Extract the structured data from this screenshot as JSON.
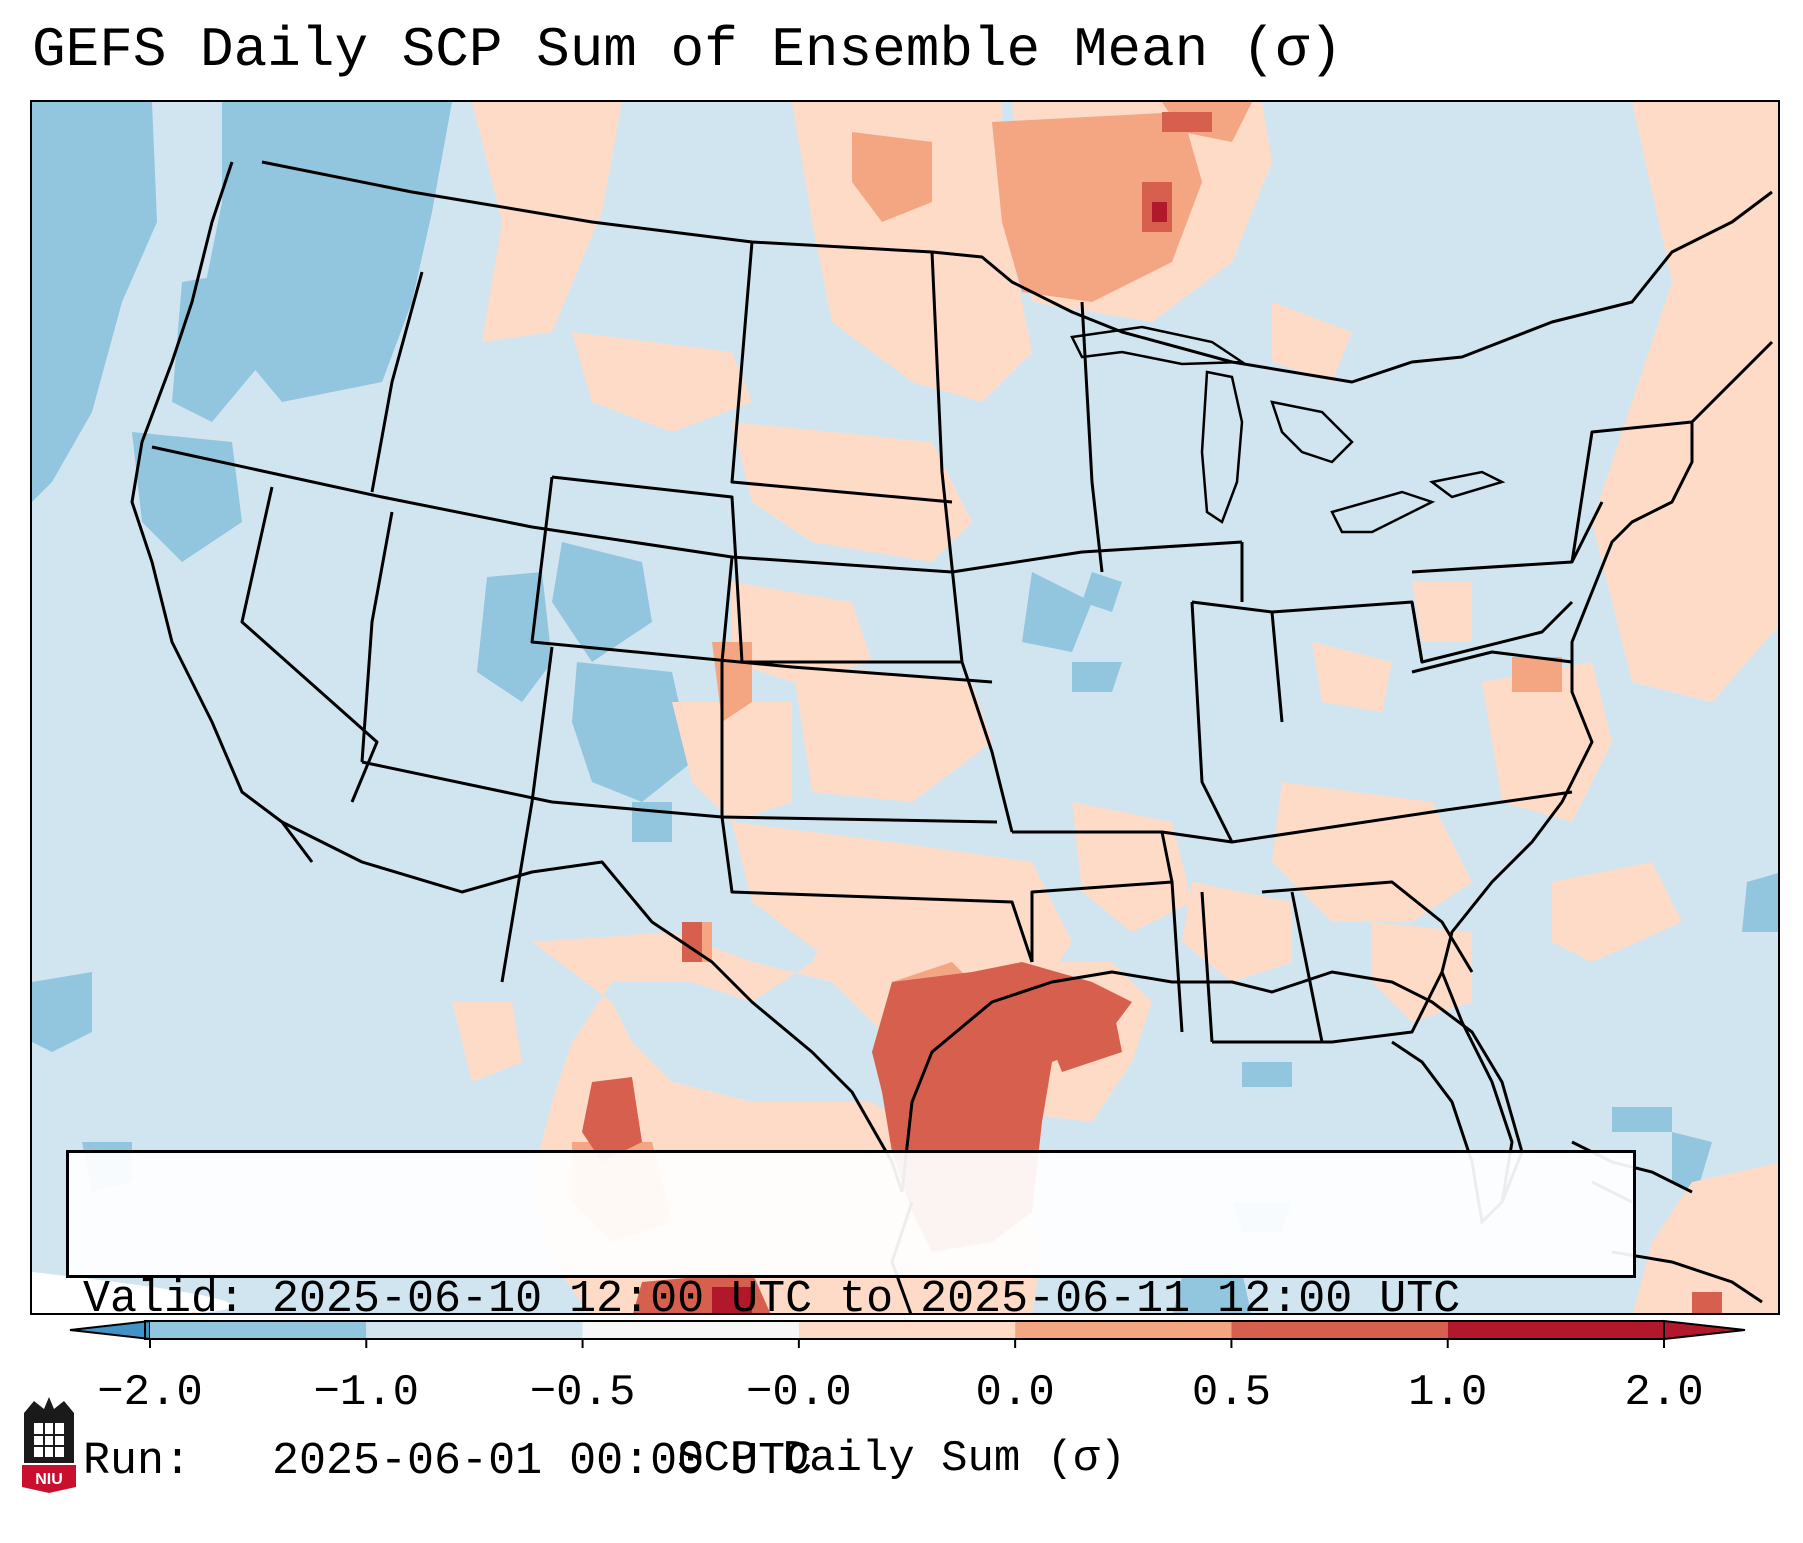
{
  "title": "GEFS Daily SCP Sum of Ensemble Mean (σ)",
  "info": {
    "valid": "Valid: 2025-06-10 12:00 UTC to 2025-06-11 12:00 UTC",
    "run": "Run:   2025-06-01 00:00 UTC"
  },
  "colorbar": {
    "label": "SCP Daily Sum (σ)",
    "ticks": [
      "−2.0",
      "−1.0",
      "−0.5",
      "−0.0",
      "0.0",
      "0.5",
      "1.0",
      "2.0"
    ],
    "colors": [
      "#4292c6",
      "#92c5de",
      "#d1e5f0",
      "#f7f7f7",
      "#fddbc7",
      "#f4a582",
      "#d6604d",
      "#b2182b"
    ]
  },
  "map": {
    "background_class_color": "#d1e5f0",
    "region": "Contiguous United States",
    "features": [
      "state-borders",
      "coastlines",
      "great-lakes",
      "gulf-of-mexico"
    ]
  },
  "logo": {
    "text": "NIU"
  }
}
